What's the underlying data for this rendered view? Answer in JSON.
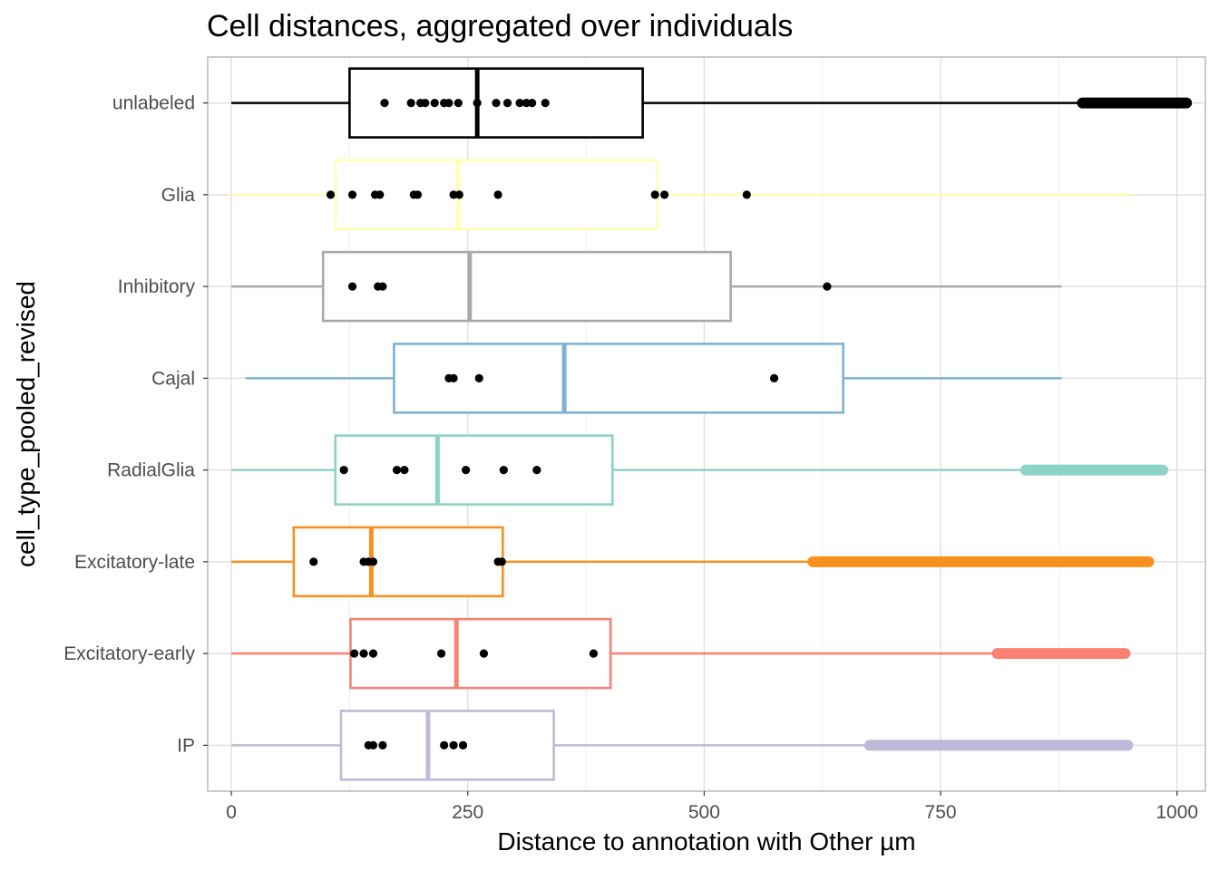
{
  "chart_data": {
    "type": "boxplot",
    "title": "Cell distances, aggregated over individuals",
    "xlabel": "Distance to annotation with Other µm",
    "ylabel": "cell_type_pooled_revised",
    "xlim": [
      -25,
      1030
    ],
    "x_ticks": [
      0,
      250,
      500,
      750,
      1000
    ],
    "x_tick_labels": [
      "0",
      "250",
      "500",
      "750",
      "1000"
    ],
    "grid": true,
    "legend": "none",
    "categories": [
      "unlabeled",
      "Glia",
      "Inhibitory",
      "Cajal",
      "RadialGlia",
      "Excitatory-late",
      "Excitatory-early",
      "IP"
    ],
    "boxes": [
      {
        "name": "unlabeled",
        "color": "#000000",
        "whisker_low": 0,
        "q1": 125,
        "median": 260,
        "q3": 435,
        "whisker_high": 900,
        "outliers": [
          900,
          1010
        ],
        "outlier_band": true,
        "points": [
          162,
          190,
          200,
          205,
          215,
          225,
          230,
          240,
          260,
          280,
          292,
          305,
          312,
          318,
          332
        ]
      },
      {
        "name": "Glia",
        "color": "#FFFFB3",
        "whisker_low": 0,
        "q1": 110,
        "median": 240,
        "q3": 450,
        "whisker_high": 950,
        "outliers": [],
        "outlier_band": false,
        "points": [
          105,
          128,
          152,
          157,
          193,
          197,
          235,
          241,
          282,
          448,
          458,
          545
        ]
      },
      {
        "name": "Inhibitory",
        "color": "#A9A9A9",
        "whisker_low": 0,
        "q1": 97,
        "median": 252,
        "q3": 528,
        "whisker_high": 878,
        "outliers": [],
        "outlier_band": false,
        "points": [
          128,
          155,
          160,
          630
        ]
      },
      {
        "name": "Cajal",
        "color": "#80B1D3",
        "whisker_low": 15,
        "q1": 172,
        "median": 352,
        "q3": 647,
        "whisker_high": 878,
        "outliers": [],
        "outlier_band": false,
        "points": [
          230,
          235,
          262,
          574
        ]
      },
      {
        "name": "RadialGlia",
        "color": "#8DD3C7",
        "whisker_low": 0,
        "q1": 110,
        "median": 218,
        "q3": 403,
        "whisker_high": 840,
        "outliers": [
          840,
          985
        ],
        "outlier_band": true,
        "points": [
          119,
          175,
          183,
          248,
          288,
          323
        ]
      },
      {
        "name": "Excitatory-late",
        "color": "#F8901E",
        "whisker_low": 0,
        "q1": 66,
        "median": 148,
        "q3": 287,
        "whisker_high": 615,
        "outliers": [
          615,
          970
        ],
        "outlier_band": true,
        "points": [
          87,
          140,
          145,
          150,
          282,
          286
        ]
      },
      {
        "name": "Excitatory-early",
        "color": "#FA8072",
        "whisker_low": 0,
        "q1": 126,
        "median": 238,
        "q3": 401,
        "whisker_high": 810,
        "outliers": [
          810,
          945
        ],
        "outlier_band": true,
        "points": [
          130,
          140,
          150,
          222,
          267,
          383
        ]
      },
      {
        "name": "IP",
        "color": "#BEBADA",
        "whisker_low": 0,
        "q1": 116,
        "median": 208,
        "q3": 341,
        "whisker_high": 675,
        "outliers": [
          675,
          948
        ],
        "outlier_band": true,
        "points": [
          145,
          150,
          160,
          225,
          235,
          245
        ]
      }
    ]
  }
}
